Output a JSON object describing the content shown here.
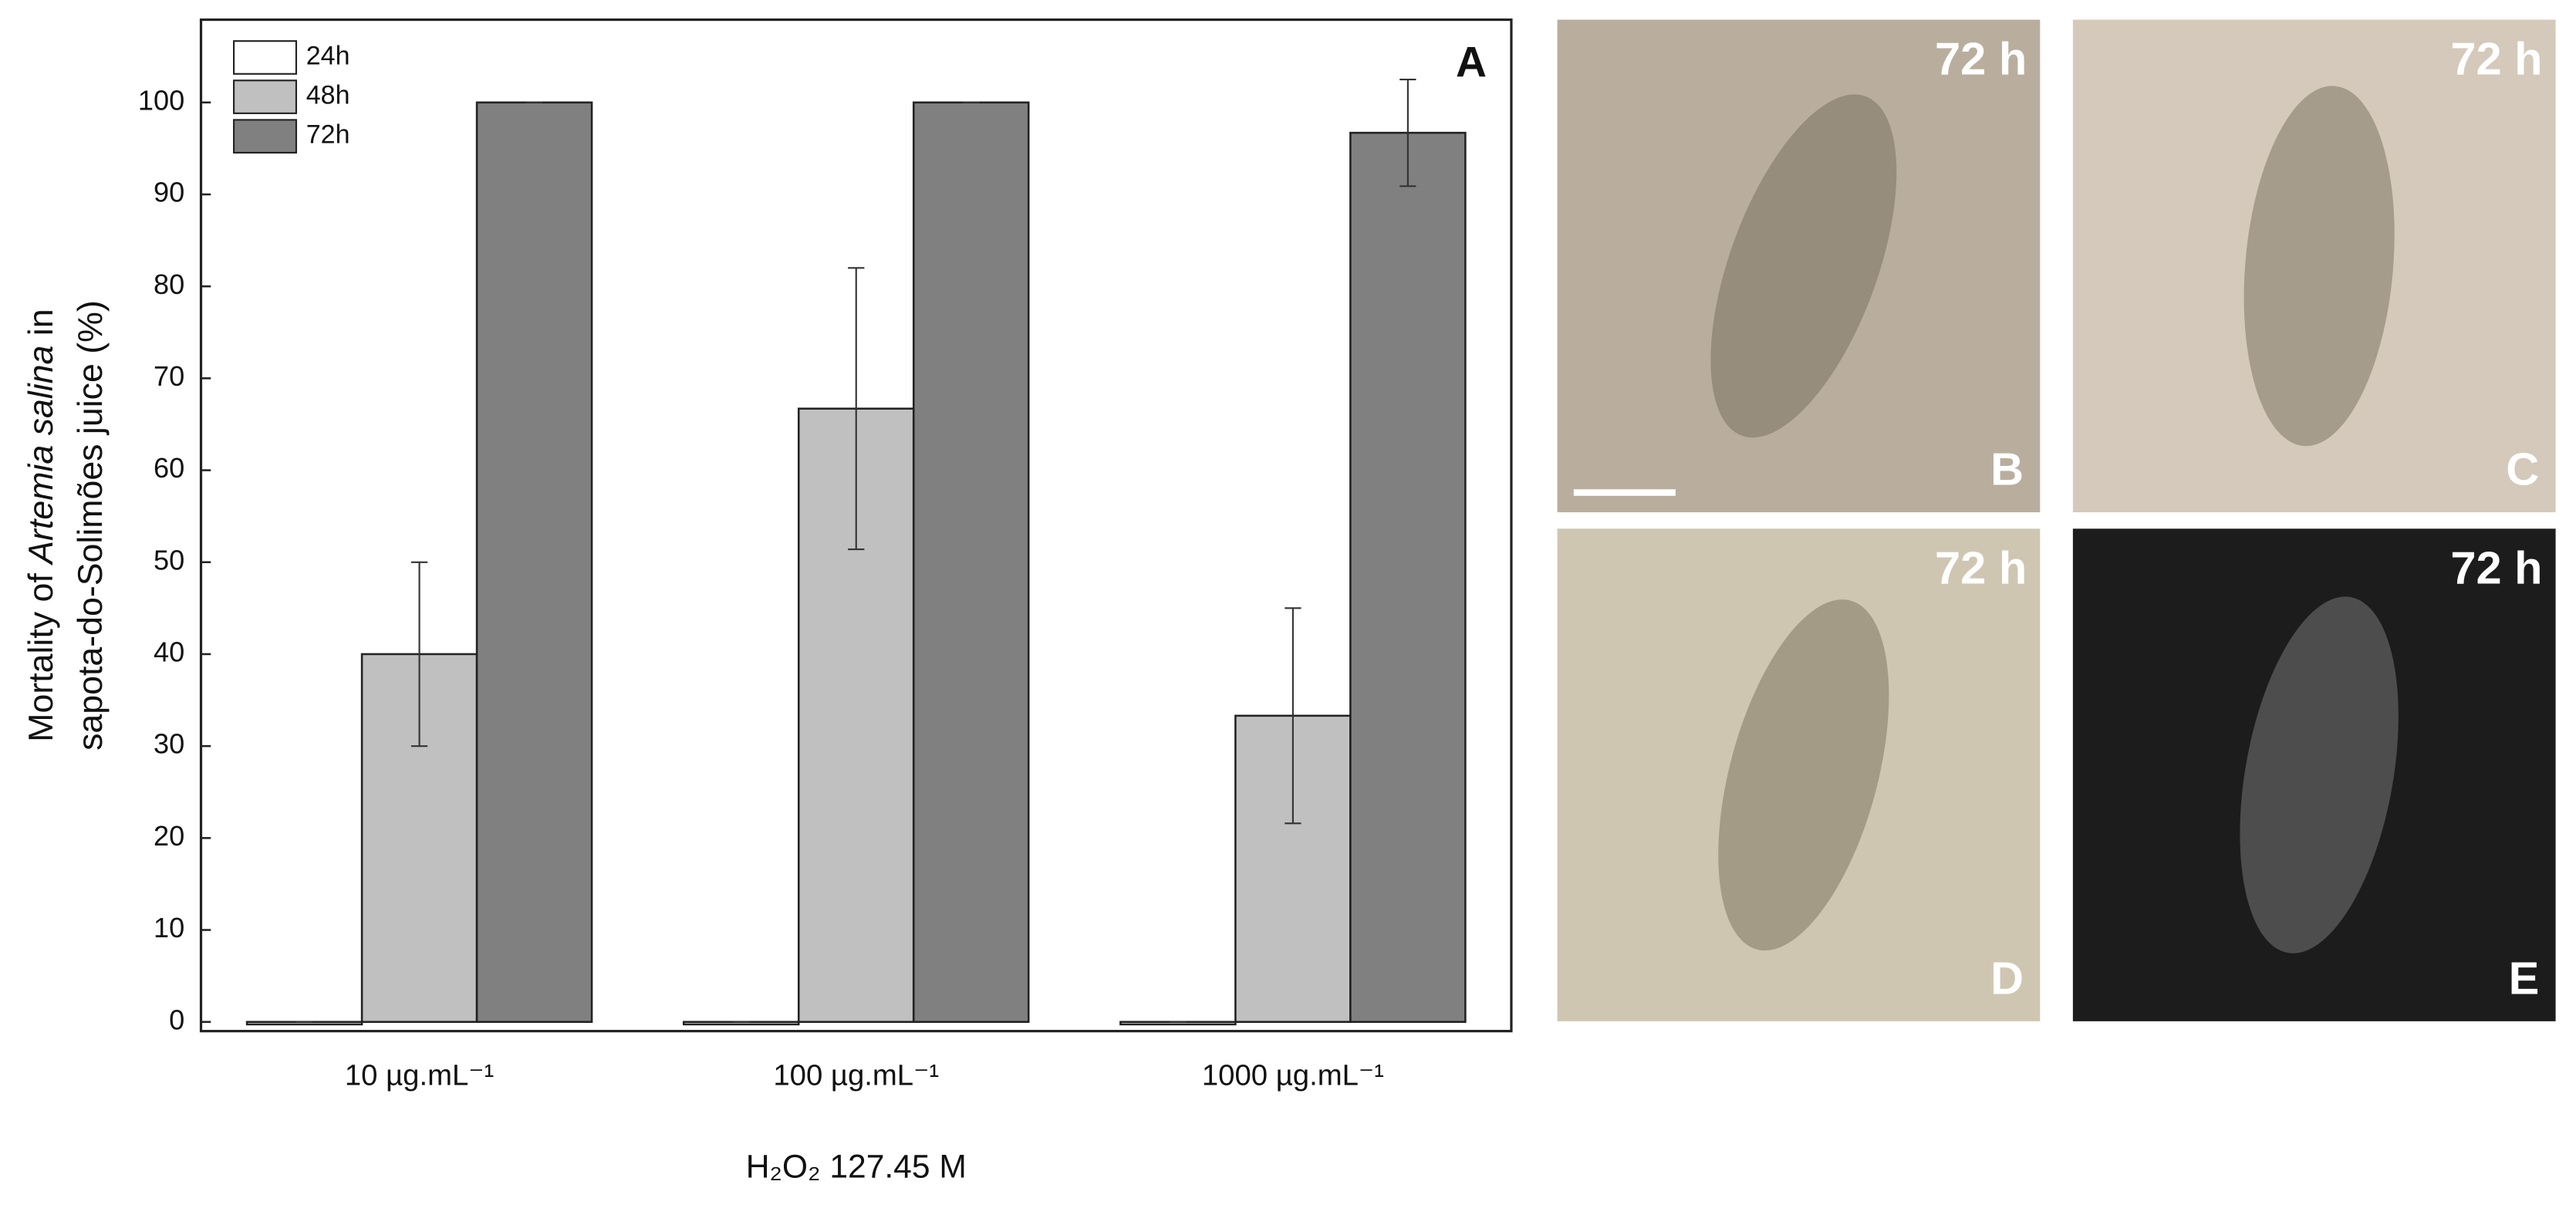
{
  "chart_data": {
    "type": "bar",
    "panel_label": "A",
    "ylabel": [
      [
        "Mortality of ",
        "Artemia salina",
        " in"
      ],
      [
        "sapota-do-Solimões juice (%)"
      ]
    ],
    "xlabel": "H₂O₂ 127.45 M",
    "categories": [
      "10 µg.mL⁻¹",
      "100 µg.mL⁻¹",
      "1000 µg.mL⁻¹"
    ],
    "series": [
      {
        "name": "24h",
        "color": "#ffffff",
        "values": [
          0,
          0,
          0
        ],
        "errors": [
          0,
          0,
          0
        ]
      },
      {
        "name": "48h",
        "color": "#c0c0c0",
        "values": [
          40,
          66.7,
          33.3
        ],
        "errors": [
          10,
          15.3,
          11.7
        ]
      },
      {
        "name": "72h",
        "color": "#808080",
        "values": [
          100,
          100,
          96.7
        ],
        "errors": [
          0,
          0,
          5.8
        ]
      }
    ],
    "ylim": [
      -1,
      109
    ],
    "yticks": [
      0,
      10,
      20,
      30,
      40,
      50,
      60,
      70,
      80,
      90,
      100
    ],
    "legend": "upper left"
  },
  "panels": [
    {
      "time": "72 h",
      "label": "B",
      "color": "#b9ae9e"
    },
    {
      "time": "72 h",
      "label": "C",
      "color": "#d4c9ba"
    },
    {
      "time": "72 h",
      "label": "D",
      "color": "#cfc6b2"
    },
    {
      "time": "72 h",
      "label": "E",
      "color": "#1c1c1c"
    }
  ]
}
